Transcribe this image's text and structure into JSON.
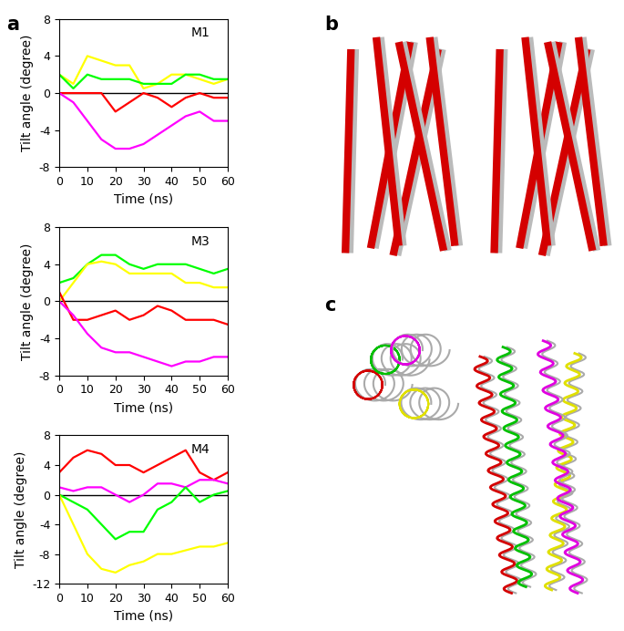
{
  "panel_labels": [
    "a",
    "b",
    "c"
  ],
  "chart_data": [
    {
      "type": "line",
      "title": "M1",
      "x_label": "Time (ns)",
      "y_label": "Tilt angle (degree)",
      "x": [
        0,
        5,
        10,
        15,
        20,
        25,
        30,
        35,
        40,
        45,
        50,
        55,
        60
      ],
      "xlim": [
        0,
        60
      ],
      "xticks": [
        0,
        10,
        20,
        30,
        40,
        50,
        60
      ],
      "ylim": [
        -8,
        8
      ],
      "yticks": [
        -8,
        -4,
        0,
        4,
        8
      ],
      "series": [
        {
          "color": "#000000",
          "values": [
            0,
            0,
            0,
            0,
            0,
            0,
            0,
            0,
            0,
            0,
            0,
            0,
            0
          ]
        },
        {
          "color": "#ffff00",
          "values": [
            2,
            1,
            4,
            3.5,
            3,
            3,
            0.5,
            1,
            2,
            2,
            1.5,
            1,
            1.5
          ]
        },
        {
          "color": "#00ff00",
          "values": [
            2,
            0.5,
            2,
            1.5,
            1.5,
            1.5,
            1,
            1,
            1,
            2,
            2,
            1.5,
            1.5
          ]
        },
        {
          "color": "#ff0000",
          "values": [
            0,
            0,
            0,
            0,
            -2,
            -1,
            0,
            -0.5,
            -1.5,
            -0.5,
            0,
            -0.5,
            -0.5
          ]
        },
        {
          "color": "#ff00ff",
          "values": [
            0,
            -1,
            -3,
            -5,
            -6,
            -6,
            -5.5,
            -4.5,
            -3.5,
            -2.5,
            -2,
            -3,
            -3
          ]
        }
      ]
    },
    {
      "type": "line",
      "title": "M3",
      "x_label": "Time (ns)",
      "y_label": "Tilt angle (degree)",
      "x": [
        0,
        5,
        10,
        15,
        20,
        25,
        30,
        35,
        40,
        45,
        50,
        55,
        60
      ],
      "xlim": [
        0,
        60
      ],
      "xticks": [
        0,
        10,
        20,
        30,
        40,
        50,
        60
      ],
      "ylim": [
        -8,
        8
      ],
      "yticks": [
        -8,
        -4,
        0,
        4,
        8
      ],
      "series": [
        {
          "color": "#000000",
          "values": [
            0,
            0,
            0,
            0,
            0,
            0,
            0,
            0,
            0,
            0,
            0,
            0,
            0
          ]
        },
        {
          "color": "#00ff00",
          "values": [
            2,
            2.5,
            4,
            5,
            5,
            4,
            3.5,
            4,
            4,
            4,
            3.5,
            3,
            3.5
          ]
        },
        {
          "color": "#ffff00",
          "values": [
            0,
            2,
            4,
            4.3,
            4,
            3,
            3,
            3,
            3,
            2,
            2,
            1.5,
            1.5
          ]
        },
        {
          "color": "#ff0000",
          "values": [
            1,
            -2,
            -2,
            -1.5,
            -1,
            -2,
            -1.5,
            -0.5,
            -1,
            -2,
            -2,
            -2,
            -2.5
          ]
        },
        {
          "color": "#ff00ff",
          "values": [
            0,
            -1.5,
            -3.5,
            -5,
            -5.5,
            -5.5,
            -6,
            -6.5,
            -7,
            -6.5,
            -6.5,
            -6,
            -6
          ]
        }
      ]
    },
    {
      "type": "line",
      "title": "M4",
      "x_label": "Time (ns)",
      "y_label": "Tilt angle (degree)",
      "x": [
        0,
        5,
        10,
        15,
        20,
        25,
        30,
        35,
        40,
        45,
        50,
        55,
        60
      ],
      "xlim": [
        0,
        60
      ],
      "xticks": [
        0,
        10,
        20,
        30,
        40,
        50,
        60
      ],
      "ylim": [
        -12,
        8
      ],
      "yticks": [
        -12,
        -8,
        -4,
        0,
        4,
        8
      ],
      "series": [
        {
          "color": "#000000",
          "values": [
            0,
            0,
            0,
            0,
            0,
            0,
            0,
            0,
            0,
            0,
            0,
            0,
            0
          ]
        },
        {
          "color": "#ff0000",
          "values": [
            3,
            5,
            6,
            5.5,
            4,
            4,
            3,
            4,
            5,
            6,
            3,
            2,
            3
          ]
        },
        {
          "color": "#ff00ff",
          "values": [
            1,
            0.5,
            1,
            1,
            0,
            -1,
            0,
            1.5,
            1.5,
            1,
            2,
            2,
            1.5
          ]
        },
        {
          "color": "#00ff00",
          "values": [
            0,
            -1,
            -2,
            -4,
            -6,
            -5,
            -5,
            -2,
            -1,
            1,
            -1,
            0,
            0.5
          ]
        },
        {
          "color": "#ffff00",
          "values": [
            0,
            -4,
            -8,
            -10,
            -10.5,
            -9.5,
            -9,
            -8,
            -8,
            -7.5,
            -7,
            -7,
            -6.5
          ]
        }
      ]
    }
  ]
}
